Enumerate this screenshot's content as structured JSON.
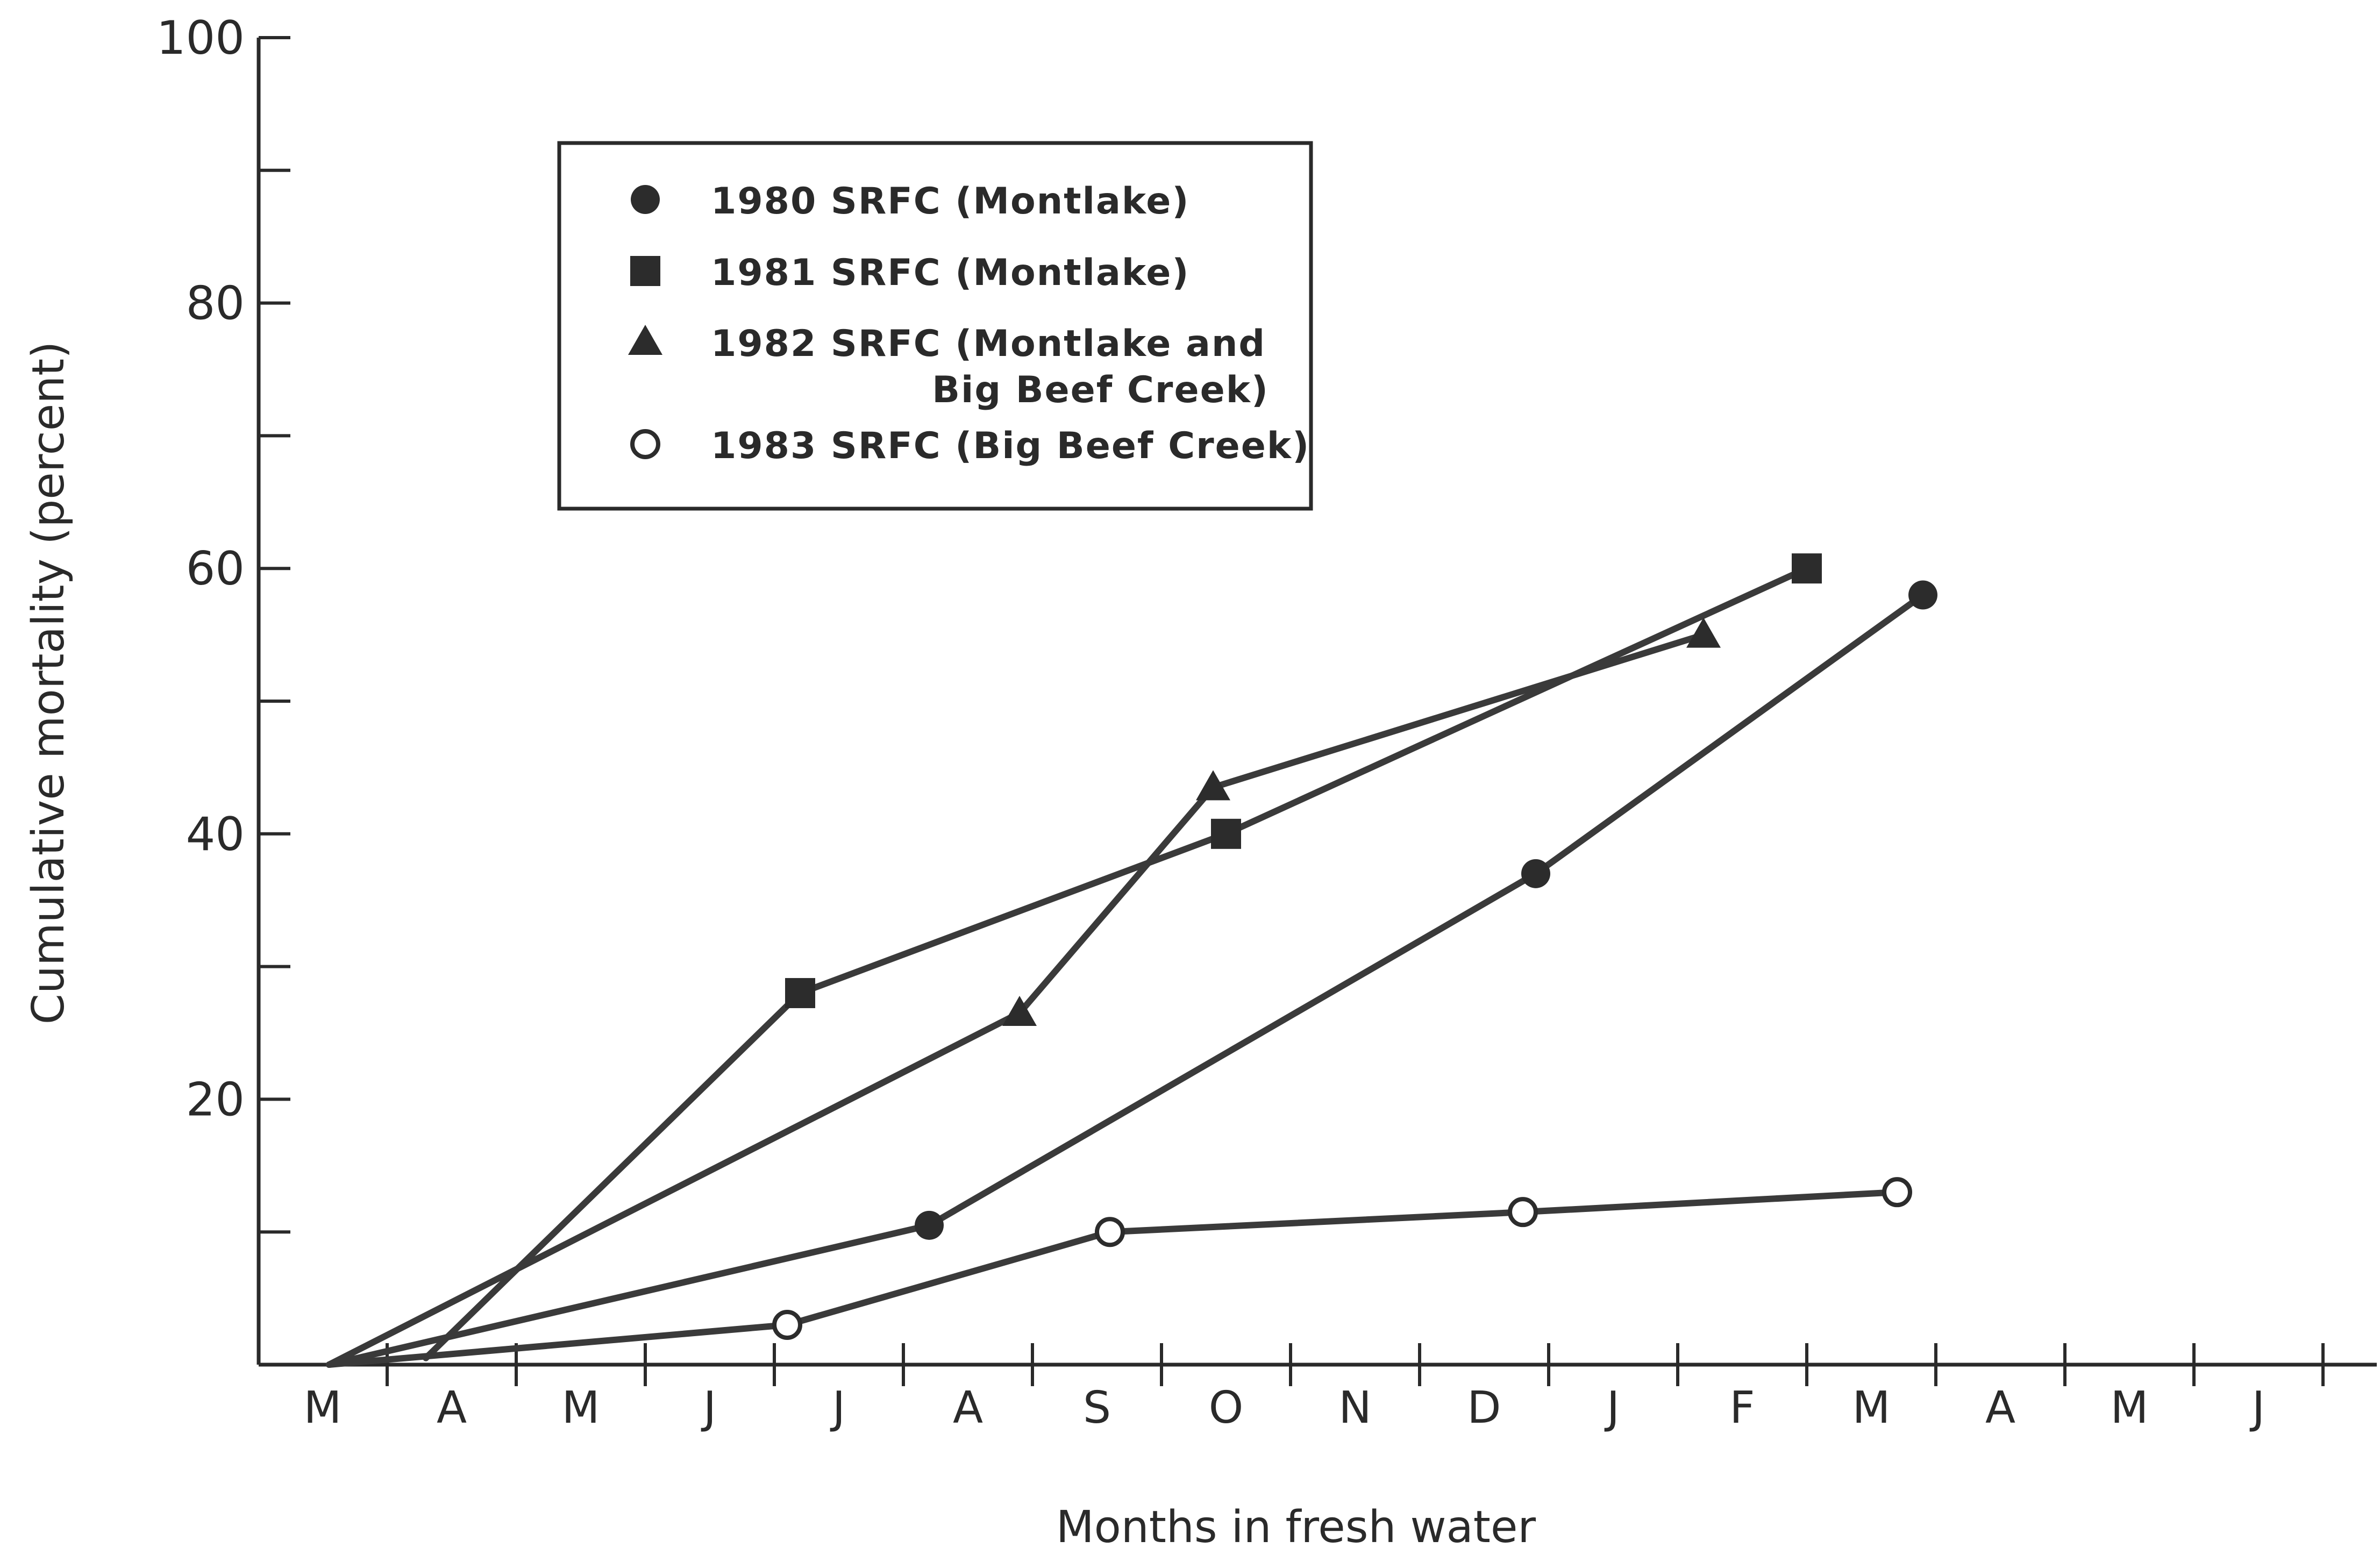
{
  "chart_data": {
    "type": "line",
    "title": "",
    "xlabel": "Months in fresh water",
    "ylabel": "Cumulative mortality (percent)",
    "x_tick_labels": [
      "M",
      "A",
      "M",
      "J",
      "J",
      "A",
      "S",
      "O",
      "N",
      "D",
      "J",
      "F",
      "M",
      "A",
      "M",
      "J"
    ],
    "y_ticks": [
      20,
      40,
      60,
      80,
      100
    ],
    "y_tick_labels": [
      "20",
      "40",
      "60",
      "80",
      "100"
    ],
    "y_minor_ticks": [
      10,
      30,
      50,
      70,
      90
    ],
    "ylim": [
      0,
      100
    ],
    "xlim": [
      0,
      15.7
    ],
    "grid": false,
    "legend_position": "top-left",
    "series": [
      {
        "name": "1980 SRFC (Montlake)",
        "marker": "filled-circle",
        "x": [
          0.05,
          4.7,
          9.4,
          12.4
        ],
        "y": [
          0,
          10.5,
          37,
          58
        ]
      },
      {
        "name": "1981 SRFC (Montlake)",
        "marker": "filled-square",
        "x": [
          0.8,
          3.7,
          7.0,
          11.5
        ],
        "y": [
          0.5,
          28,
          40,
          60
        ]
      },
      {
        "name": "1982 SRFC (Montlake and",
        "name_line2": "Big Beef Creek)",
        "marker": "filled-triangle",
        "x": [
          0.05,
          5.4,
          6.9,
          10.7
        ],
        "y": [
          0,
          26.5,
          43.5,
          55
        ]
      },
      {
        "name": "1983 SRFC (Big Beef Creek)",
        "marker": "open-circle",
        "x": [
          0.05,
          3.6,
          6.1,
          9.3,
          12.2
        ],
        "y": [
          0,
          3,
          10,
          11.5,
          13
        ]
      }
    ]
  }
}
